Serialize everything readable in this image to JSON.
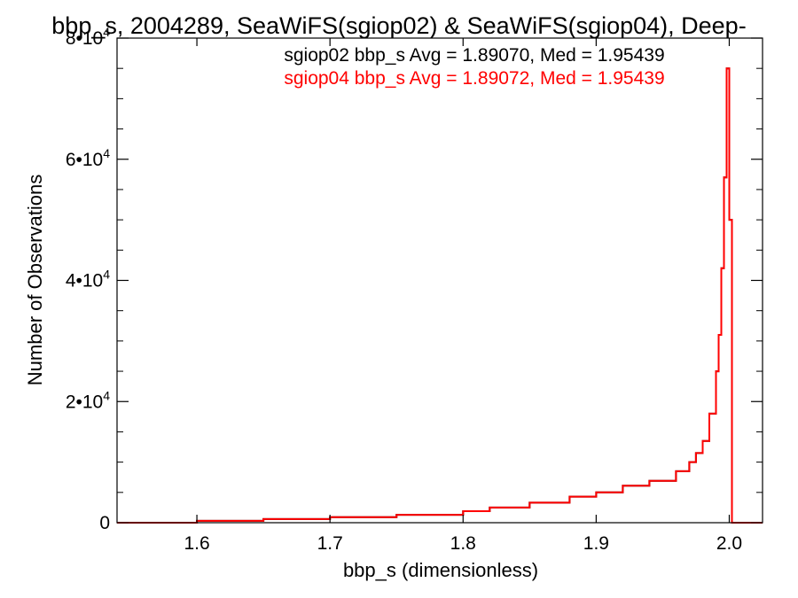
{
  "chart_data": {
    "type": "line",
    "title": "bbp_s, 2004289, SeaWiFS(sgiop02) & SeaWiFS(sgiop04), Deep-",
    "xlabel": "bbp_s (dimensionless)",
    "ylabel": "Number of Observations",
    "xlim": [
      1.54,
      2.025
    ],
    "ylim": [
      0,
      80000
    ],
    "x_ticks": [
      1.6,
      1.7,
      1.8,
      1.9,
      2.0
    ],
    "x_tick_labels": [
      "1.6",
      "1.7",
      "1.8",
      "1.9",
      "2.0"
    ],
    "y_ticks": [
      {
        "value": 0,
        "mantissa": "0",
        "exp": ""
      },
      {
        "value": 20000,
        "mantissa": "2•10",
        "exp": "4"
      },
      {
        "value": 40000,
        "mantissa": "4•10",
        "exp": "4"
      },
      {
        "value": 60000,
        "mantissa": "6•10",
        "exp": "4"
      },
      {
        "value": 80000,
        "mantissa": "8•10",
        "exp": "4"
      }
    ],
    "annotations": [
      {
        "text": "sgiop02 bbp_s Avg = 1.89070, Med = 1.95439",
        "color": "#000000"
      },
      {
        "text": "sgiop04 bbp_s Avg = 1.89072, Med = 1.95439",
        "color": "#ff0000"
      }
    ],
    "series": [
      {
        "color": "#000000",
        "x": [
          1.54,
          1.6,
          1.65,
          1.7,
          1.75,
          1.8,
          1.82,
          1.85,
          1.88,
          1.9,
          1.92,
          1.94,
          1.96,
          1.97,
          1.975,
          1.98,
          1.985,
          1.99,
          1.992,
          1.994,
          1.996,
          1.998,
          2.0,
          2.002,
          2.004,
          2.025
        ],
        "y": [
          0,
          300,
          600,
          900,
          1300,
          1900,
          2500,
          3300,
          4300,
          5000,
          6100,
          6900,
          8500,
          10000,
          11500,
          13500,
          18000,
          25000,
          31000,
          42000,
          57000,
          75000,
          50000,
          0,
          0,
          0
        ]
      },
      {
        "color": "#ff0000",
        "x": [
          1.54,
          1.6,
          1.65,
          1.7,
          1.75,
          1.8,
          1.82,
          1.85,
          1.88,
          1.9,
          1.92,
          1.94,
          1.96,
          1.97,
          1.975,
          1.98,
          1.985,
          1.99,
          1.992,
          1.994,
          1.996,
          1.998,
          2.0,
          2.002,
          2.004,
          2.025
        ],
        "y": [
          0,
          300,
          600,
          900,
          1300,
          1900,
          2500,
          3300,
          4300,
          5000,
          6100,
          6900,
          8500,
          10000,
          11500,
          13500,
          18000,
          25000,
          31000,
          42000,
          57000,
          75000,
          50000,
          0,
          0,
          0
        ]
      }
    ],
    "grid": false,
    "colors": {
      "axis": "#000000",
      "series_1": "#000000",
      "series_2": "#ff0000"
    }
  }
}
